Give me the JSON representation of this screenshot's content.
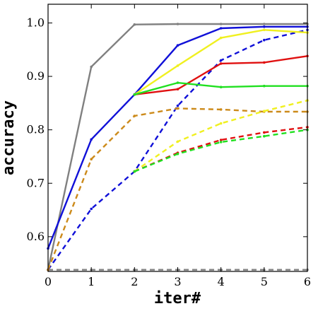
{
  "chart_data": {
    "type": "line",
    "title": "",
    "xlabel": "iter#",
    "ylabel": "accuracy",
    "xlim": [
      0,
      6
    ],
    "ylim": [
      0.535,
      1.035
    ],
    "xticks": [
      0,
      1,
      2,
      3,
      4,
      5,
      6
    ],
    "yticks": [
      0.6,
      0.7,
      0.8,
      0.9,
      1.0
    ],
    "ytick_labels": [
      "0.6",
      "0.7",
      "0.8",
      "0.9",
      "1.0"
    ],
    "grid": false,
    "legend": "none",
    "series": [
      {
        "color": "#808080",
        "dash": "solid",
        "x": [
          0,
          1,
          2,
          3,
          4,
          5,
          6
        ],
        "y": [
          0.538,
          0.918,
          0.997,
          0.998,
          0.998,
          0.998,
          0.998
        ]
      },
      {
        "color": "#808080",
        "dash": "dashed",
        "x": [
          0,
          1,
          2,
          3,
          4,
          5,
          6
        ],
        "y": [
          0.538,
          0.538,
          0.538,
          0.538,
          0.538,
          0.538,
          0.538
        ]
      },
      {
        "color": "#1010d8",
        "dash": "solid",
        "x": [
          0,
          1,
          2,
          3,
          4,
          5,
          6
        ],
        "y": [
          0.578,
          0.782,
          0.866,
          0.958,
          0.99,
          0.993,
          0.993
        ]
      },
      {
        "color": "#1010d8",
        "dash": "dashed",
        "x": [
          0,
          1,
          2,
          3,
          4,
          5,
          6
        ],
        "y": [
          0.538,
          0.652,
          0.722,
          0.845,
          0.93,
          0.968,
          0.987
        ]
      },
      {
        "color": "#cc8a1a",
        "dash": "dashed",
        "x": [
          0,
          1,
          2,
          3,
          4,
          5,
          6
        ],
        "y": [
          0.538,
          0.745,
          0.826,
          0.84,
          0.838,
          0.834,
          0.834
        ]
      },
      {
        "color": "#f0f020",
        "dash": "solid",
        "x": [
          2,
          3,
          4,
          5,
          6
        ],
        "y": [
          0.866,
          0.92,
          0.972,
          0.987,
          0.982
        ]
      },
      {
        "color": "#e01010",
        "dash": "solid",
        "x": [
          2,
          3,
          4,
          5,
          6
        ],
        "y": [
          0.866,
          0.876,
          0.924,
          0.926,
          0.938
        ]
      },
      {
        "color": "#20e020",
        "dash": "solid",
        "x": [
          2,
          3,
          4,
          5,
          6
        ],
        "y": [
          0.866,
          0.888,
          0.88,
          0.882,
          0.882
        ]
      },
      {
        "color": "#f0f020",
        "dash": "dashed",
        "x": [
          2,
          3,
          4,
          5,
          6
        ],
        "y": [
          0.722,
          0.778,
          0.812,
          0.835,
          0.855
        ]
      },
      {
        "color": "#e01010",
        "dash": "dashed",
        "x": [
          2,
          3,
          4,
          5,
          6
        ],
        "y": [
          0.722,
          0.757,
          0.781,
          0.795,
          0.805
        ]
      },
      {
        "color": "#20e020",
        "dash": "dashed",
        "x": [
          2,
          3,
          4,
          5,
          6
        ],
        "y": [
          0.722,
          0.755,
          0.777,
          0.788,
          0.8
        ]
      }
    ]
  }
}
